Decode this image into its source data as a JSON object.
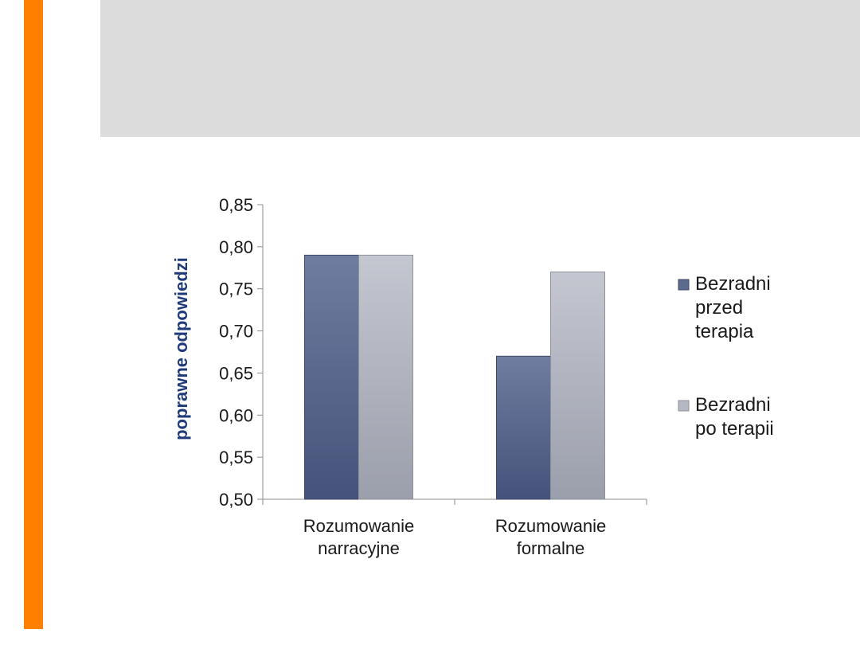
{
  "colors": {
    "accent": "#ff7f00",
    "header_band": "#dcdcdc",
    "series_before": "#5c6a8c",
    "series_after": "#b4b8c2",
    "ylabel": "#1f3a78"
  },
  "chart_data": {
    "type": "bar",
    "categories": [
      [
        "Rozumowanie",
        "narracyjne"
      ],
      [
        "Rozumowanie",
        "formalne"
      ]
    ],
    "series": [
      {
        "name": "Bezradni przed terapia",
        "legend_lines": [
          "Bezradni",
          "przed",
          "terapia"
        ],
        "values": [
          0.79,
          0.67
        ]
      },
      {
        "name": "Bezradni po terapii",
        "legend_lines": [
          "Bezradni",
          "po terapii"
        ],
        "values": [
          0.79,
          0.77
        ]
      }
    ],
    "ylabel": "poprawne odpowiedzi",
    "ylim": [
      0.5,
      0.85
    ],
    "yticks": [
      "0,50",
      "0,55",
      "0,60",
      "0,65",
      "0,70",
      "0,75",
      "0,80",
      "0,85"
    ],
    "grid": false,
    "legend_position": "right"
  }
}
